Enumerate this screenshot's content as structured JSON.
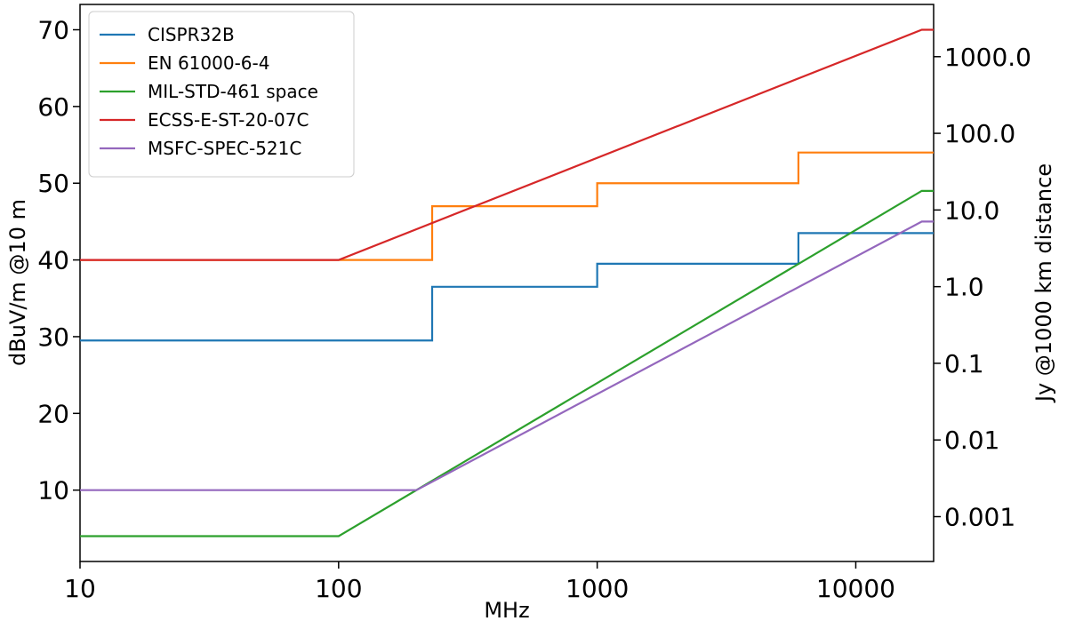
{
  "chart_data": {
    "type": "line",
    "xlabel": "MHz",
    "ylabel": "dBuV/m @10 m",
    "y2label": "Jy @1000 km distance",
    "xscale": "log",
    "xlim": [
      10,
      20000
    ],
    "xticks": [
      10,
      100,
      1000,
      10000
    ],
    "ylim": [
      0.7,
      73.3
    ],
    "yticks": [
      10,
      20,
      30,
      40,
      50,
      60,
      70
    ],
    "y2scale": "log",
    "y2lim": [
      0.00026,
      4800
    ],
    "y2ticks": [
      {
        "value": 1000,
        "label": "1000.0"
      },
      {
        "value": 100,
        "label": "100.0"
      },
      {
        "value": 10,
        "label": "10.0"
      },
      {
        "value": 1,
        "label": "1.0"
      },
      0.1,
      0.01,
      0.001
    ],
    "legend": "upper left",
    "series": [
      {
        "name": "CISPR32B",
        "color": "#1f77b4",
        "x": [
          10,
          230,
          230,
          1000,
          1000,
          6000,
          6000,
          20000
        ],
        "values": [
          29.5,
          29.5,
          36.5,
          36.5,
          39.5,
          39.5,
          43.5,
          43.5
        ]
      },
      {
        "name": "EN 61000-6-4",
        "color": "#ff7f0e",
        "x": [
          10,
          230,
          230,
          1000,
          1000,
          6000,
          6000,
          20000
        ],
        "values": [
          40,
          40,
          47,
          47,
          50,
          50,
          54,
          54
        ]
      },
      {
        "name": "MIL-STD-461 space",
        "color": "#2ca02c",
        "x": [
          10,
          100,
          18000,
          20000
        ],
        "values": [
          4,
          4,
          49,
          49
        ]
      },
      {
        "name": "ECSS-E-ST-20-07C",
        "color": "#d62728",
        "x": [
          10,
          100,
          18000,
          20000
        ],
        "values": [
          40,
          40,
          70,
          70
        ]
      },
      {
        "name": "MSFC-SPEC-521C",
        "color": "#9467bd",
        "x": [
          10,
          200,
          18000,
          20000
        ],
        "values": [
          10,
          10,
          45,
          45
        ]
      }
    ]
  }
}
